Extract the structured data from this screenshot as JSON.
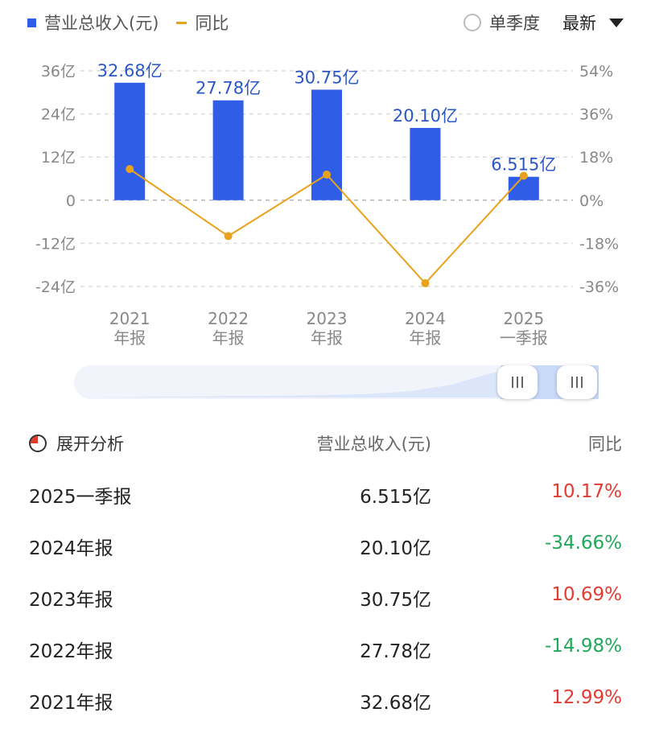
{
  "legend": {
    "bar_label": "营业总收入(元)",
    "line_label": "同比"
  },
  "controls": {
    "season_label": "单季度",
    "latest_label": "最新"
  },
  "chart_data": {
    "type": "bar",
    "categories": [
      "2021\n年报",
      "2022\n年报",
      "2023\n年报",
      "2024\n年报",
      "2025\n一季报"
    ],
    "series": [
      {
        "name": "营业总收入(元)",
        "type": "bar",
        "values": [
          32.68,
          27.78,
          30.75,
          20.1,
          6.515
        ],
        "labels": [
          "32.68亿",
          "27.78亿",
          "30.75亿",
          "20.10亿",
          "6.515亿"
        ],
        "color": "#2f5de8"
      },
      {
        "name": "同比",
        "type": "line",
        "values": [
          12.99,
          -14.98,
          10.69,
          -34.66,
          10.17
        ],
        "color": "#e8a21c"
      }
    ],
    "y_left": {
      "ticks": [
        36,
        24,
        12,
        0,
        -12,
        -24
      ],
      "tick_labels": [
        "36亿",
        "24亿",
        "12亿",
        "0",
        "-12亿",
        "-24亿"
      ],
      "ylim": [
        -24,
        36
      ]
    },
    "y_right": {
      "ticks": [
        54,
        36,
        18,
        0,
        -18,
        -36
      ],
      "tick_labels": [
        "54%",
        "36%",
        "18%",
        "0%",
        "-18%",
        "-36%"
      ],
      "ylim": [
        -36,
        54
      ]
    },
    "grid": true
  },
  "table": {
    "expand_label": "展开分析",
    "col_revenue": "营业总收入(元)",
    "col_yoy": "同比",
    "rows": [
      {
        "period": "2025一季报",
        "revenue": "6.515亿",
        "yoy": "10.17%",
        "trend": "up"
      },
      {
        "period": "2024年报",
        "revenue": "20.10亿",
        "yoy": "-34.66%",
        "trend": "down"
      },
      {
        "period": "2023年报",
        "revenue": "30.75亿",
        "yoy": "10.69%",
        "trend": "up"
      },
      {
        "period": "2022年报",
        "revenue": "27.78亿",
        "yoy": "-14.98%",
        "trend": "down"
      },
      {
        "period": "2021年报",
        "revenue": "32.68亿",
        "yoy": "12.99%",
        "trend": "up"
      }
    ]
  }
}
